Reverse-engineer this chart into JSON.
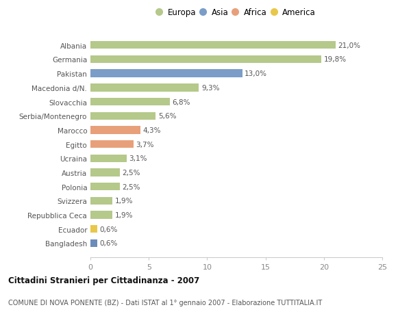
{
  "categories": [
    "Bangladesh",
    "Ecuador",
    "Repubblica Ceca",
    "Svizzera",
    "Polonia",
    "Austria",
    "Ucraina",
    "Egitto",
    "Marocco",
    "Serbia/Montenegro",
    "Slovacchia",
    "Macedonia d/N.",
    "Pakistan",
    "Germania",
    "Albania"
  ],
  "values": [
    0.6,
    0.6,
    1.9,
    1.9,
    2.5,
    2.5,
    3.1,
    3.7,
    4.3,
    5.6,
    6.8,
    9.3,
    13.0,
    19.8,
    21.0
  ],
  "labels": [
    "0,6%",
    "0,6%",
    "1,9%",
    "1,9%",
    "2,5%",
    "2,5%",
    "3,1%",
    "3,7%",
    "4,3%",
    "5,6%",
    "6,8%",
    "9,3%",
    "13,0%",
    "19,8%",
    "21,0%"
  ],
  "colors": [
    "#6b8cba",
    "#e8c84a",
    "#b5c98a",
    "#b5c98a",
    "#b5c98a",
    "#b5c98a",
    "#b5c98a",
    "#e8a07a",
    "#e8a07a",
    "#b5c98a",
    "#b5c98a",
    "#b5c98a",
    "#7b9dc8",
    "#b5c98a",
    "#b5c98a"
  ],
  "legend_labels": [
    "Europa",
    "Asia",
    "Africa",
    "America"
  ],
  "legend_colors": [
    "#b5c98a",
    "#7b9dc8",
    "#e8a07a",
    "#e8c84a"
  ],
  "title": "Cittadini Stranieri per Cittadinanza - 2007",
  "subtitle": "COMUNE DI NOVA PONENTE (BZ) - Dati ISTAT al 1° gennaio 2007 - Elaborazione TUTTITALIA.IT",
  "xlim": [
    0,
    25
  ],
  "xticks": [
    0,
    5,
    10,
    15,
    20,
    25
  ],
  "background_color": "#ffffff",
  "bar_height": 0.55
}
